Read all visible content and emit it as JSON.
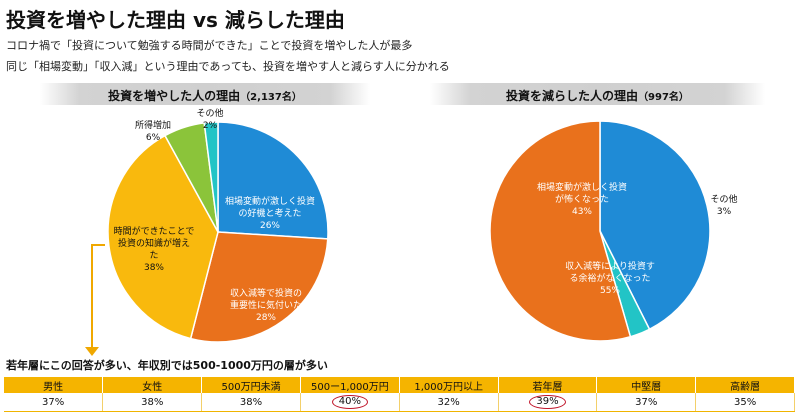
{
  "title": "投資を増やした理由 vs 減らした理由",
  "subtitle_1": "コロナ禍で「投資について勉強する時間ができた」ことで投資を増やした人が最多",
  "subtitle_2": "同じ「相場変動」「収入減」という理由であっても、投資を増やす人と減らす人に分かれる",
  "chart_data": [
    {
      "type": "pie",
      "title": "投資を増やした人の理由",
      "count_label": "（2,137名）",
      "slices": [
        {
          "lines": [
            "相場変動が激しく投資",
            "の好機と考えた"
          ],
          "value": 26,
          "pct": "26%",
          "color": "#1f8bd6",
          "text_color": "#ffffff"
        },
        {
          "lines": [
            "収入減等で投資の",
            "重要性に気付いた"
          ],
          "value": 28,
          "pct": "28%",
          "color": "#e9711c",
          "text_color": "#ffffff"
        },
        {
          "lines": [
            "時間ができたことで",
            "投資の知識が増え",
            "た"
          ],
          "value": 38,
          "pct": "38%",
          "color": "#f9b90d",
          "text_color": "#111111"
        },
        {
          "lines": [
            "所得増加"
          ],
          "value": 6,
          "pct": "6%",
          "color": "#8bc43a",
          "text_color": "#111111"
        },
        {
          "lines": [
            "その他"
          ],
          "value": 2,
          "pct": "2%",
          "color": "#22c4c6",
          "text_color": "#111111"
        }
      ]
    },
    {
      "type": "pie",
      "title": "投資を減らした人の理由",
      "count_label": "（997名）",
      "slices": [
        {
          "lines": [
            "相場変動が激しく投資",
            "が怖くなった"
          ],
          "value": 43,
          "pct": "43%",
          "color": "#1f8bd6",
          "text_color": "#ffffff"
        },
        {
          "lines": [
            "その他"
          ],
          "value": 3,
          "pct": "3%",
          "color": "#22c4c6",
          "text_color": "#111111"
        },
        {
          "lines": [
            "収入減等により投資す",
            "る余裕がなくなった"
          ],
          "value": 55,
          "pct": "55%",
          "color": "#e9711c",
          "text_color": "#ffffff"
        }
      ]
    }
  ],
  "breakdown": {
    "note": "若年層にこの回答が多い、年収別では500-1000万円の層が多い",
    "headers": [
      "男性",
      "女性",
      "500万円未満",
      "500ー1,000万円",
      "1,000万円以上",
      "若年層",
      "中堅層",
      "高齢層"
    ],
    "values": [
      "37%",
      "38%",
      "38%",
      "40%",
      "32%",
      "39%",
      "37%",
      "35%"
    ],
    "highlighted": [
      3,
      5
    ],
    "header_color": "#f5b400",
    "highlight_color": "#c0152a"
  }
}
